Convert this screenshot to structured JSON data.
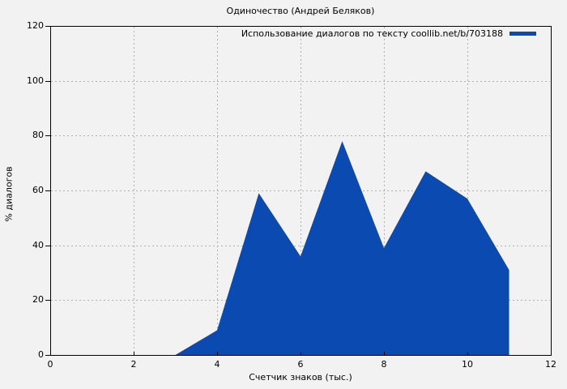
{
  "page": {
    "background": "#f2f2f2"
  },
  "title": "Одиночество (Андрей Беляков)",
  "legend": {
    "label": "Использование диалогов по тексту coollib.net/b/703188"
  },
  "chart_data": {
    "type": "area",
    "title": "Одиночество (Андрей Беляков)",
    "series": [
      {
        "name": "Использование диалогов по тексту coollib.net/b/703188",
        "x": [
          3,
          4,
          5,
          6,
          7,
          8,
          9,
          10,
          11
        ],
        "values": [
          0,
          9,
          59,
          36,
          78,
          39,
          67,
          57,
          31
        ]
      }
    ],
    "xlabel": "Счетчик знаков (тыс.)",
    "ylabel": "% диалогов",
    "xlim": [
      0,
      12
    ],
    "ylim": [
      0,
      120
    ],
    "x_ticks": [
      0,
      2,
      4,
      6,
      8,
      10,
      12
    ],
    "y_ticks": [
      0,
      20,
      40,
      60,
      80,
      100,
      120
    ],
    "grid": "dashed",
    "legend_position": "top-right-inside",
    "fill_color": "#0b4ab0",
    "grid_color": "#b0b0b0",
    "axis_color": "#000000"
  }
}
